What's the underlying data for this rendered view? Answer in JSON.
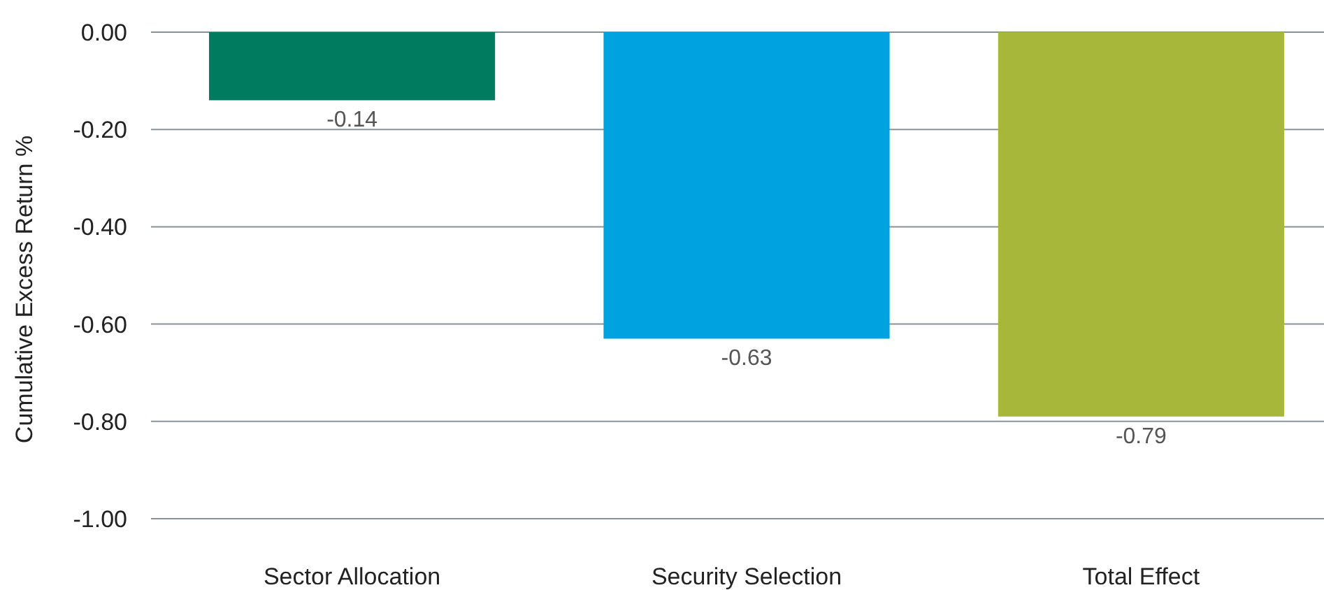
{
  "chart_data": {
    "type": "bar",
    "ylabel": "Cumulative Excess Return %",
    "categories": [
      "Sector Allocation",
      "Security Selection",
      "Total Effect"
    ],
    "values": [
      -0.14,
      -0.63,
      -0.79
    ],
    "colors": [
      "#007b5f",
      "#00a3e0",
      "#a7b73a"
    ],
    "ylim": [
      -1.0,
      0.0
    ],
    "yticks": [
      {
        "value": 0,
        "label": "0.00"
      },
      {
        "value": -0.2,
        "label": "-0.20"
      },
      {
        "value": -0.4,
        "label": "-0.40"
      },
      {
        "value": -0.6,
        "label": "-0.60"
      },
      {
        "value": -0.8,
        "label": "-0.80"
      },
      {
        "value": -1.0,
        "label": "-1.00"
      }
    ],
    "grid": "y",
    "data_labels": true
  }
}
